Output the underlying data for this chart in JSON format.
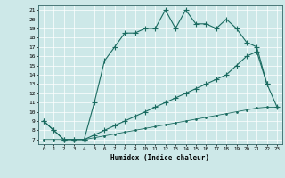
{
  "title": "",
  "xlabel": "Humidex (Indice chaleur)",
  "ylabel": "",
  "bg_color": "#cde8e8",
  "line_color": "#1a6b60",
  "grid_color": "#b0d0d0",
  "xlim": [
    -0.5,
    23.5
  ],
  "ylim": [
    6.5,
    21.5
  ],
  "xticks": [
    0,
    1,
    2,
    3,
    4,
    5,
    6,
    7,
    8,
    9,
    10,
    11,
    12,
    13,
    14,
    15,
    16,
    17,
    18,
    19,
    20,
    21,
    22,
    23
  ],
  "yticks": [
    7,
    8,
    9,
    10,
    11,
    12,
    13,
    14,
    15,
    16,
    17,
    18,
    19,
    20,
    21
  ],
  "line1_x": [
    0,
    1,
    2,
    3,
    4,
    5,
    6,
    7,
    8,
    9,
    10,
    11,
    12,
    13,
    14,
    15,
    16,
    17,
    18,
    19,
    20,
    21,
    22,
    23
  ],
  "line1_y": [
    9,
    8,
    7,
    7,
    7,
    11,
    15.5,
    17,
    18.5,
    18.5,
    19,
    19,
    21,
    19,
    21,
    19.5,
    19.5,
    19,
    20,
    19,
    17.5,
    17,
    13,
    10.5
  ],
  "line2_x": [
    0,
    1,
    2,
    3,
    4,
    5,
    6,
    7,
    8,
    9,
    10,
    11,
    12,
    13,
    14,
    15,
    16,
    17,
    18,
    19,
    20,
    21,
    22
  ],
  "line2_y": [
    9,
    8,
    7,
    7,
    7,
    7.5,
    8,
    8.5,
    9,
    9.5,
    10,
    10.5,
    11,
    11.5,
    12,
    12.5,
    13,
    13.5,
    14,
    15,
    16,
    16.5,
    13
  ],
  "line3_x": [
    0,
    1,
    2,
    3,
    4,
    5,
    6,
    7,
    8,
    9,
    10,
    11,
    12,
    13,
    14,
    15,
    16,
    17,
    18,
    19,
    20,
    21,
    22,
    23
  ],
  "line3_y": [
    7,
    7,
    7,
    7,
    7,
    7.2,
    7.4,
    7.6,
    7.8,
    8.0,
    8.2,
    8.4,
    8.6,
    8.8,
    9.0,
    9.2,
    9.4,
    9.6,
    9.8,
    10.0,
    10.2,
    10.4,
    10.5,
    10.5
  ]
}
